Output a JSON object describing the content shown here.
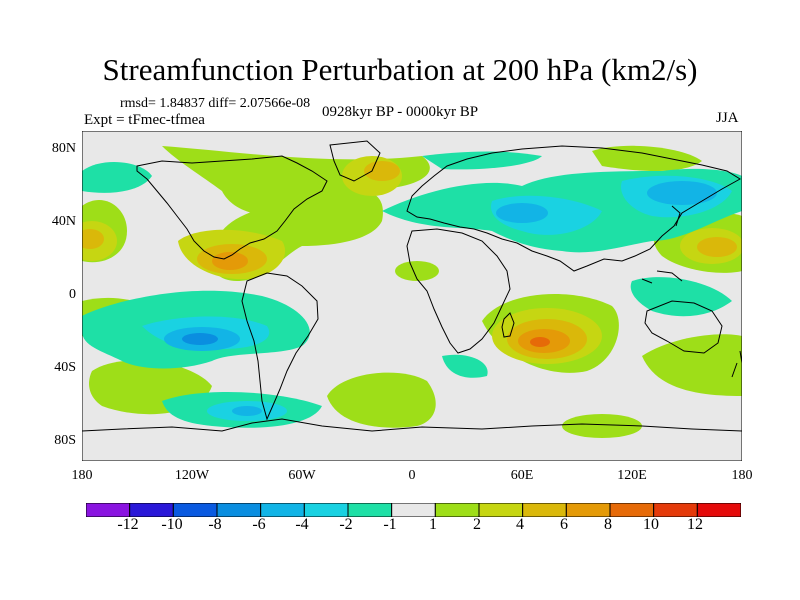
{
  "title": "Streamfunction Perturbation at 200 hPa (km2/s)",
  "stats": "rmsd= 1.84837 diff= 2.07566e-08",
  "experiment": "Expt = tFmec-tfmea",
  "period": "0928kyr BP - 0000kyr BP",
  "season": "JJA",
  "lat_labels": [
    "80N",
    "40N",
    "0",
    "40S",
    "80S"
  ],
  "lon_labels": [
    "180",
    "120W",
    "60W",
    "0",
    "60E",
    "120E",
    "180"
  ],
  "colorbar": {
    "labels": [
      "-12",
      "-10",
      "-8",
      "-6",
      "-4",
      "-2",
      "-1",
      "1",
      "2",
      "4",
      "6",
      "8",
      "10",
      "12"
    ],
    "colors": [
      "#8a14e0",
      "#2a18d8",
      "#0a5ae0",
      "#0a8ee0",
      "#12b4e6",
      "#1ad2e2",
      "#1ee0a6",
      "#e8e8e8",
      "#9ede18",
      "#c6d612",
      "#dab80a",
      "#e49a08",
      "#e66a08",
      "#e43a0a",
      "#e40a0a"
    ]
  }
}
